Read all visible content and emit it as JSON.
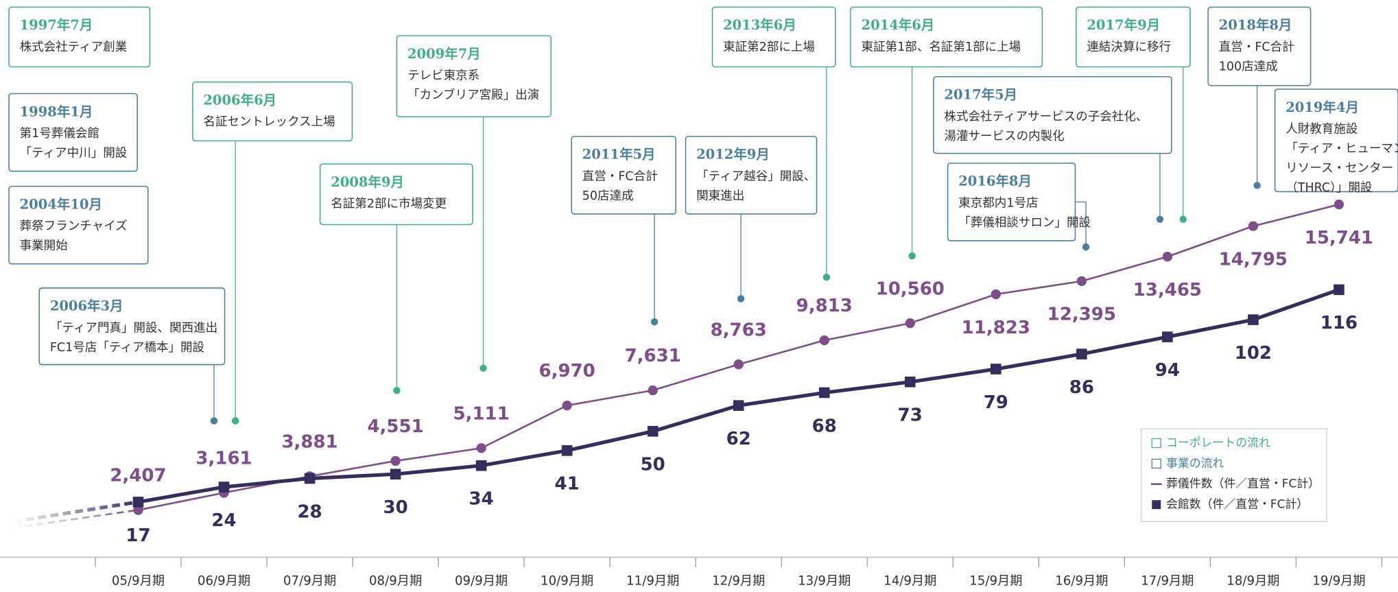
{
  "chart_data": {
    "type": "line",
    "categories": [
      "05/9月期",
      "06/9月期",
      "07/9月期",
      "08/9月期",
      "09/9月期",
      "10/9月期",
      "11/9月期",
      "12/9月期",
      "13/9月期",
      "14/9月期",
      "15/9月期",
      "16/9月期",
      "17/9月期",
      "18/9月期",
      "19/9月期"
    ],
    "series": [
      {
        "name": "葬儀件数（件／直営・FC計）",
        "color": "#7d4e8a",
        "values": [
          2407,
          3161,
          3881,
          4551,
          5111,
          6970,
          7631,
          8763,
          9813,
          10560,
          11823,
          12395,
          13465,
          14795,
          15741
        ],
        "value_labels": [
          "2,407",
          "3,161",
          "3,881",
          "4,551",
          "5,111",
          "6,970",
          "7,631",
          "8,763",
          "9,813",
          "10,560",
          "11,823",
          "12,395",
          "13,465",
          "14,795",
          "15,741"
        ]
      },
      {
        "name": "会館数（件／直営・FC計）",
        "color": "#332e5c",
        "axis": "y2",
        "values": [
          17,
          24,
          28,
          30,
          34,
          41,
          50,
          62,
          68,
          73,
          79,
          86,
          94,
          102,
          116
        ]
      }
    ],
    "ylim": [
      0,
      24000
    ],
    "y2lim": [
      0,
      244
    ],
    "legend_extra": [
      {
        "name": "コーポレートの流れ",
        "color": "#3fae8a"
      },
      {
        "name": "事業の流れ",
        "color": "#4a7f9f"
      }
    ],
    "annotations": [
      {
        "date": "1997年7月",
        "lines": [
          "株式会社ティア創業"
        ],
        "color": "#3fae8a"
      },
      {
        "date": "1998年1月",
        "lines": [
          "第1号葬儀会館",
          "「ティア中川」開設"
        ],
        "color": "#4a7f9f"
      },
      {
        "date": "2004年10月",
        "lines": [
          "葬祭フランチャイズ",
          "事業開始"
        ],
        "color": "#4a7f9f"
      },
      {
        "date": "2006年3月",
        "lines": [
          "「ティア門真」開設、関西進出",
          "FC1号店「ティア橋本」開設"
        ],
        "color": "#4a7f9f"
      },
      {
        "date": "2006年6月",
        "lines": [
          "名証セントレックス上場"
        ],
        "color": "#3fae8a"
      },
      {
        "date": "2008年9月",
        "lines": [
          "名証第2部に市場変更"
        ],
        "color": "#3fae8a"
      },
      {
        "date": "2009年7月",
        "lines": [
          "テレビ東京系",
          "「カンブリア宮殿」出演"
        ],
        "color": "#3fae8a"
      },
      {
        "date": "2011年5月",
        "lines": [
          "直営・FC合計",
          "50店達成"
        ],
        "color": "#4a7f9f"
      },
      {
        "date": "2012年9月",
        "lines": [
          "「ティア越谷」開設、",
          "関東進出"
        ],
        "color": "#4a7f9f"
      },
      {
        "date": "2013年6月",
        "lines": [
          "東証第2部に上場"
        ],
        "color": "#3fae8a"
      },
      {
        "date": "2014年6月",
        "lines": [
          "東証第1部、名証第1部に上場"
        ],
        "color": "#3fae8a"
      },
      {
        "date": "2016年8月",
        "lines": [
          "東京都内1号店",
          "「葬儀相談サロン」開設"
        ],
        "color": "#4a7f9f"
      },
      {
        "date": "2017年5月",
        "lines": [
          "株式会社ティアサービスの子会社化、",
          "湯灌サービスの内製化"
        ],
        "color": "#4a7f9f"
      },
      {
        "date": "2017年9月",
        "lines": [
          "連結決算に移行"
        ],
        "color": "#3fae8a"
      },
      {
        "date": "2018年8月",
        "lines": [
          "直営・FC合計",
          "100店達成"
        ],
        "color": "#4a7f9f"
      },
      {
        "date": "2019年4月",
        "lines": [
          "人財教育施設",
          "「ティア・ヒューマン",
          "リソース・センター",
          "（THRC）」開設"
        ],
        "color": "#4a7f9f"
      }
    ]
  }
}
